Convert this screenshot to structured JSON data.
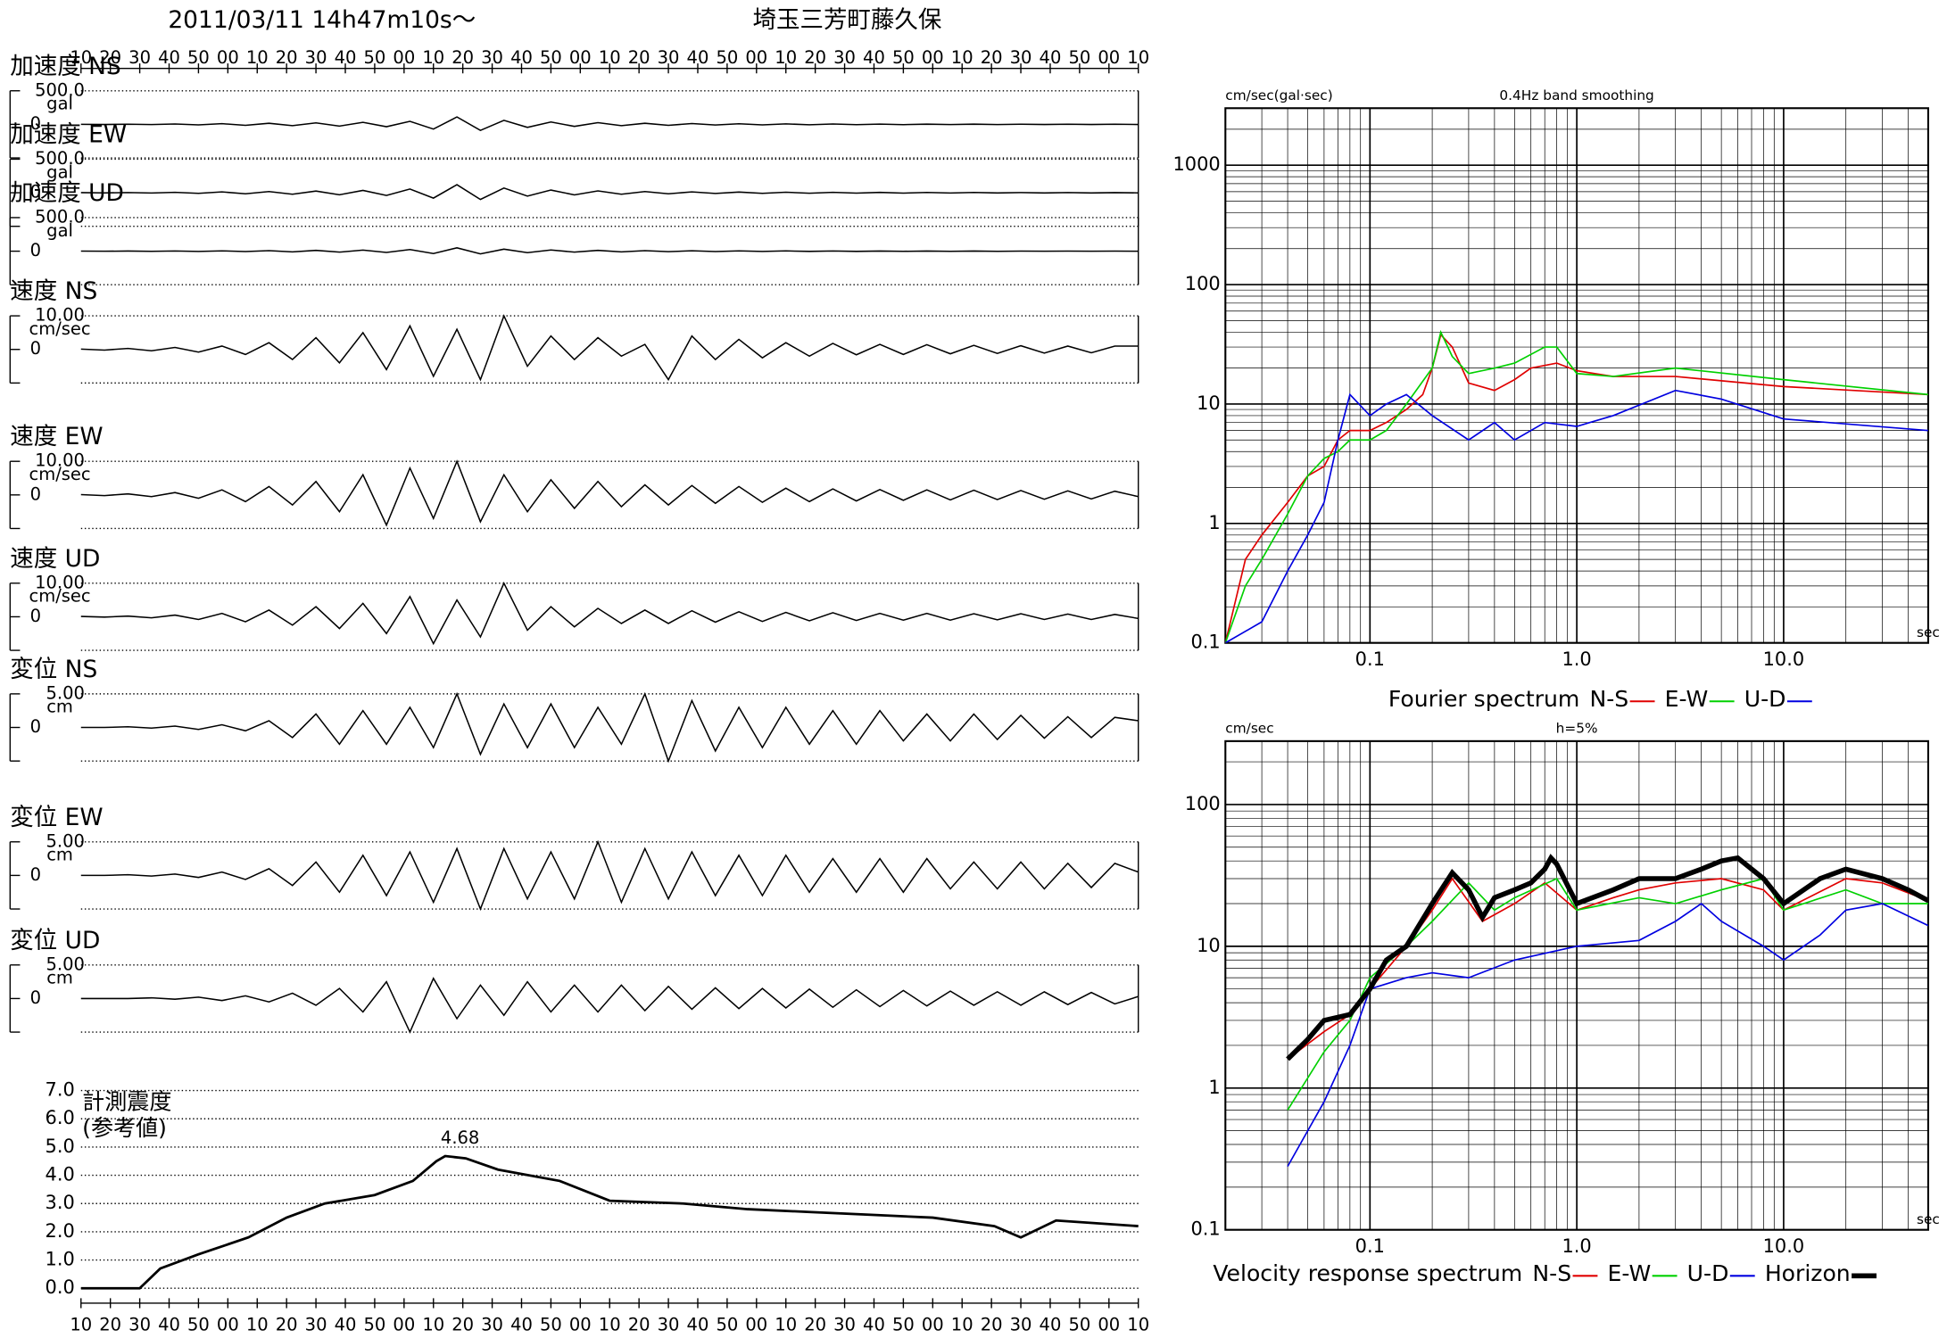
{
  "header": {
    "datetime": "2011/03/11  14h47m10s〜",
    "station": "埼玉三芳町藤久保"
  },
  "chart_data": [
    {
      "type": "waveform",
      "xlim": [
        0,
        360
      ],
      "time_labels": [
        "10",
        "20",
        "30",
        "40",
        "50",
        "00",
        "10",
        "20",
        "30",
        "40",
        "50",
        "00",
        "10",
        "20",
        "30",
        "40",
        "50",
        "00",
        "10",
        "20",
        "30",
        "40",
        "50",
        "00",
        "10",
        "20",
        "30",
        "40",
        "50",
        "00",
        "10",
        "20",
        "30",
        "40",
        "50",
        "00",
        "10"
      ],
      "x": [
        0,
        8,
        16,
        24,
        32,
        40,
        48,
        56,
        64,
        72,
        80,
        88,
        96,
        104,
        112,
        120,
        128,
        136,
        144,
        152,
        160,
        168,
        176,
        184,
        192,
        200,
        208,
        216,
        224,
        232,
        240,
        248,
        256,
        264,
        272,
        280,
        288,
        296,
        304,
        312,
        320,
        328,
        336,
        344,
        352,
        360
      ],
      "series": [
        {
          "name": "加速度 NS",
          "unit": "gal",
          "ylim": [
            -500,
            500
          ],
          "yticks": [
            {
              "value": 500,
              "label": "500.0"
            },
            0
          ],
          "values": [
            1,
            -2,
            2,
            -3,
            5,
            -8,
            10,
            -14,
            16,
            -20,
            22,
            -26,
            30,
            -35,
            45,
            -70,
            110,
            -90,
            60,
            -45,
            35,
            -30,
            25,
            -20,
            16,
            -14,
            12,
            -10,
            9,
            -8,
            7,
            -6,
            5,
            -5,
            4,
            -4,
            3,
            -3,
            3,
            -3,
            2,
            -2,
            2,
            -2,
            2,
            -2
          ]
        },
        {
          "name": "加速度 EW",
          "unit": "gal",
          "ylim": [
            -500,
            500
          ],
          "yticks": [
            {
              "value": 500,
              "label": "500.0"
            },
            0
          ],
          "values": [
            2,
            -2,
            3,
            -4,
            6,
            -9,
            12,
            -15,
            18,
            -22,
            25,
            -30,
            35,
            -40,
            55,
            -80,
            120,
            -100,
            70,
            -50,
            40,
            -32,
            28,
            -22,
            18,
            -15,
            13,
            -11,
            10,
            -9,
            8,
            -7,
            6,
            -6,
            5,
            -5,
            4,
            -4,
            4,
            -3,
            3,
            -3,
            3,
            -3,
            2,
            -2
          ]
        },
        {
          "name": "加速度 UD",
          "unit": "gal",
          "ylim": [
            -500,
            500
          ],
          "yticks": [
            {
              "value": 500,
              "label": "500.0"
            },
            0
          ],
          "values": [
            1,
            -1,
            2,
            -2,
            3,
            -4,
            5,
            -6,
            8,
            -10,
            12,
            -14,
            16,
            -18,
            25,
            -35,
            50,
            -40,
            30,
            -22,
            18,
            -14,
            12,
            -10,
            8,
            -7,
            6,
            -5,
            5,
            -4,
            4,
            -3,
            3,
            -3,
            2,
            -2,
            2,
            -2,
            2,
            -2,
            1,
            -1,
            1,
            -1,
            1,
            -1
          ]
        },
        {
          "name": "速度 NS",
          "unit": "cm/sec",
          "ylim": [
            -10,
            10
          ],
          "yticks": [
            {
              "value": 10,
              "label": "10.00"
            },
            0
          ],
          "values": [
            0.1,
            -0.2,
            0.3,
            -0.4,
            0.6,
            -0.8,
            1,
            -1.5,
            2,
            -3,
            3.5,
            -4,
            5,
            -6,
            7,
            -8,
            6,
            -9,
            10,
            -5,
            4,
            -3,
            3.5,
            -2,
            1.5,
            -9,
            4,
            -3,
            3,
            -2.5,
            2,
            -2,
            1.8,
            -1.6,
            1.5,
            -1.5,
            1.4,
            -1.3,
            1.2,
            -1.2,
            1.1,
            -1.1,
            1,
            -1,
            1,
            1
          ]
        },
        {
          "name": "速度 EW",
          "unit": "cm/sec",
          "ylim": [
            -10,
            10
          ],
          "yticks": [
            {
              "value": 10,
              "label": "10.00"
            },
            0
          ],
          "values": [
            0.1,
            -0.2,
            0.3,
            -0.5,
            0.7,
            -1,
            1.5,
            -2,
            2.5,
            -3,
            4,
            -5,
            6,
            -9,
            8,
            -7,
            10,
            -8,
            6,
            -5,
            4.5,
            -4,
            4,
            -3.5,
            3,
            -3,
            2.8,
            -2.5,
            2.5,
            -2.2,
            2,
            -2,
            1.8,
            -1.8,
            1.6,
            -1.6,
            1.5,
            -1.5,
            1.4,
            -1.4,
            1.3,
            -1.3,
            1.2,
            -1.2,
            1.1,
            -0.5
          ]
        },
        {
          "name": "速度 UD",
          "unit": "cm/sec",
          "ylim": [
            -10,
            10
          ],
          "yticks": [
            {
              "value": 10,
              "label": "10.00"
            },
            0
          ],
          "values": [
            0.1,
            -0.1,
            0.2,
            -0.3,
            0.5,
            -0.8,
            1,
            -1.5,
            2,
            -2.5,
            3,
            -3.5,
            4,
            -5,
            6,
            -8,
            5,
            -6,
            10,
            -4,
            3,
            -3,
            2.5,
            -2,
            2,
            -2,
            1.8,
            -1.6,
            1.5,
            -1.4,
            1.3,
            -1.2,
            1.2,
            -1.1,
            1,
            -1,
            1,
            -1,
            0.9,
            -0.9,
            0.9,
            -0.8,
            0.8,
            -0.8,
            0.7,
            -0.5
          ]
        },
        {
          "name": "変位 NS",
          "unit": "cm",
          "ylim": [
            -5,
            5
          ],
          "yticks": [
            {
              "value": 5,
              "label": "5.00"
            },
            0
          ],
          "values": [
            0,
            0,
            0.1,
            -0.1,
            0.2,
            -0.3,
            0.4,
            -0.5,
            1,
            -1.5,
            2,
            -2.5,
            2.5,
            -2.5,
            3,
            -3,
            5,
            -4,
            3.5,
            -3,
            3.5,
            -3,
            3,
            -2.5,
            5,
            -5,
            4,
            -3.5,
            3,
            -3,
            3,
            -2.5,
            2.5,
            -2.5,
            2.5,
            -2,
            2,
            -2,
            2,
            -1.8,
            1.8,
            -1.6,
            1.6,
            -1.5,
            1.5,
            1
          ]
        },
        {
          "name": "変位 EW",
          "unit": "cm",
          "ylim": [
            -5,
            5
          ],
          "yticks": [
            {
              "value": 5,
              "label": "5.00"
            },
            0
          ],
          "values": [
            0,
            0,
            0.1,
            -0.1,
            0.2,
            -0.3,
            0.5,
            -0.6,
            1,
            -1.5,
            2,
            -2.5,
            3,
            -3,
            3.5,
            -4,
            4,
            -5,
            4,
            -3.5,
            3.5,
            -3.5,
            5,
            -4,
            4,
            -3.5,
            3.5,
            -3,
            3,
            -3,
            3,
            -2.5,
            2.5,
            -2.5,
            2.5,
            -2.5,
            2.5,
            -2,
            2,
            -2,
            2,
            -2,
            1.8,
            -1.8,
            1.8,
            0.5
          ]
        },
        {
          "name": "変位 UD",
          "unit": "cm",
          "ylim": [
            -5,
            5
          ],
          "yticks": [
            {
              "value": 5,
              "label": "5.00"
            },
            0
          ],
          "values": [
            0,
            0,
            0,
            0.1,
            -0.1,
            0.2,
            -0.3,
            0.4,
            -0.5,
            0.8,
            -1,
            1.5,
            -2,
            2.5,
            -5,
            3,
            -3,
            2,
            -2.5,
            2.5,
            -2,
            2,
            -2,
            2,
            -1.8,
            1.8,
            -1.6,
            1.6,
            -1.5,
            1.5,
            -1.4,
            1.4,
            -1.3,
            1.3,
            -1.2,
            1.2,
            -1.1,
            1.1,
            -1,
            1,
            -1,
            1,
            -0.9,
            0.9,
            -0.8,
            0.3
          ]
        }
      ]
    },
    {
      "type": "line",
      "title": "計測震度",
      "subtitle": "(参考値)",
      "xlim": [
        0,
        360
      ],
      "ylim": [
        0,
        7
      ],
      "yticks": [
        {
          "value": 0,
          "label": "0.0"
        },
        {
          "value": 1,
          "label": "1.0"
        },
        {
          "value": 2,
          "label": "2.0"
        },
        {
          "value": 3,
          "label": "3.0"
        },
        {
          "value": 4,
          "label": "4.0"
        },
        {
          "value": 5,
          "label": "5.0"
        },
        {
          "value": 6,
          "label": "6.0"
        },
        {
          "value": 7,
          "label": "7.0"
        }
      ],
      "x": [
        0,
        20,
        27,
        40,
        57,
        70,
        83,
        100,
        113,
        121,
        124,
        131,
        142,
        163,
        180,
        205,
        227,
        248,
        269,
        290,
        311,
        320,
        332,
        360
      ],
      "values": [
        0,
        0,
        0.7,
        1.2,
        1.8,
        2.5,
        3.0,
        3.3,
        3.8,
        4.5,
        4.68,
        4.6,
        4.2,
        3.8,
        3.1,
        3.0,
        2.8,
        2.7,
        2.6,
        2.5,
        2.2,
        1.8,
        2.4,
        2.2
      ],
      "peak": {
        "x": 124,
        "value": 4.68
      }
    },
    {
      "type": "spectrum",
      "title": "Fourier spectrum",
      "ylabel": "cm/sec(gal·sec)",
      "xlabel": "sec",
      "note": "0.4Hz band smoothing",
      "log": true,
      "grid": true,
      "xlim": [
        0.02,
        50
      ],
      "ylim": [
        0.1,
        3000
      ],
      "xticks": [
        0.1,
        {
          "value": 1,
          "label": "1.0"
        },
        {
          "value": 10,
          "label": "10.0"
        }
      ],
      "yticks": [
        0.1,
        1,
        10,
        100,
        1000
      ],
      "series": [
        {
          "name": "N-S",
          "color": "#e00000",
          "x": [
            0.02,
            0.025,
            0.03,
            0.04,
            0.05,
            0.06,
            0.07,
            0.08,
            0.1,
            0.12,
            0.15,
            0.18,
            0.2,
            0.22,
            0.25,
            0.3,
            0.4,
            0.5,
            0.6,
            0.8,
            1,
            1.5,
            3,
            10,
            50
          ],
          "values": [
            0.1,
            0.5,
            0.8,
            1.5,
            2.5,
            3,
            5,
            6,
            6,
            7,
            9,
            12,
            20,
            38,
            30,
            15,
            13,
            16,
            20,
            22,
            19,
            17,
            17,
            14,
            12
          ]
        },
        {
          "name": "E-W",
          "color": "#00d000",
          "x": [
            0.02,
            0.025,
            0.03,
            0.04,
            0.05,
            0.06,
            0.07,
            0.08,
            0.1,
            0.12,
            0.15,
            0.2,
            0.22,
            0.25,
            0.3,
            0.4,
            0.5,
            0.7,
            0.8,
            1,
            1.5,
            3,
            10,
            50
          ],
          "values": [
            0.1,
            0.3,
            0.5,
            1.2,
            2.5,
            3.5,
            4,
            5,
            5,
            6,
            10,
            20,
            40,
            25,
            18,
            20,
            22,
            30,
            30,
            18,
            17,
            20,
            16,
            12
          ]
        },
        {
          "name": "U-D",
          "color": "#0000e0",
          "x": [
            0.02,
            0.03,
            0.04,
            0.05,
            0.06,
            0.07,
            0.08,
            0.1,
            0.12,
            0.15,
            0.2,
            0.3,
            0.4,
            0.5,
            0.7,
            1,
            1.5,
            3,
            5,
            10,
            50
          ],
          "values": [
            0.1,
            0.15,
            0.4,
            0.8,
            1.5,
            5,
            12,
            8,
            10,
            12,
            8,
            5,
            7,
            5,
            7,
            6.5,
            8,
            13,
            11,
            7.5,
            6
          ]
        }
      ]
    },
    {
      "type": "spectrum",
      "title": "Velocity response spectrum",
      "ylabel": "cm/sec",
      "xlabel": "sec",
      "note": "h=5%",
      "log": true,
      "grid": true,
      "xlim": [
        0.02,
        50
      ],
      "ylim": [
        0.1,
        280
      ],
      "xticks": [
        0.1,
        {
          "value": 1,
          "label": "1.0"
        },
        {
          "value": 10,
          "label": "10.0"
        }
      ],
      "yticks": [
        0.1,
        1,
        10,
        100
      ],
      "series": [
        {
          "name": "N-S",
          "color": "#e00000",
          "x": [
            0.04,
            0.06,
            0.08,
            0.1,
            0.15,
            0.2,
            0.25,
            0.35,
            0.5,
            0.7,
            1,
            1.5,
            2,
            3,
            5,
            8,
            10,
            20,
            30,
            50
          ],
          "values": [
            1.6,
            2.5,
            3.3,
            5,
            10,
            18,
            30,
            15,
            20,
            28,
            18,
            22,
            25,
            28,
            30,
            25,
            18,
            30,
            28,
            21
          ]
        },
        {
          "name": "E-W",
          "color": "#00d000",
          "x": [
            0.04,
            0.06,
            0.08,
            0.1,
            0.15,
            0.2,
            0.3,
            0.4,
            0.5,
            0.8,
            1,
            2,
            3,
            5,
            8,
            10,
            20,
            30,
            50
          ],
          "values": [
            0.7,
            1.8,
            3,
            6,
            10,
            15,
            28,
            18,
            22,
            30,
            18,
            22,
            20,
            25,
            30,
            18,
            25,
            20,
            20
          ]
        },
        {
          "name": "U-D",
          "color": "#0000e0",
          "x": [
            0.04,
            0.06,
            0.08,
            0.1,
            0.15,
            0.2,
            0.3,
            0.5,
            1,
            2,
            3,
            4,
            5,
            8,
            10,
            15,
            20,
            30,
            50
          ],
          "values": [
            0.28,
            0.8,
            2,
            5,
            6,
            6.5,
            6,
            8,
            10,
            11,
            15,
            20,
            15,
            10,
            8,
            12,
            18,
            20,
            14
          ]
        },
        {
          "name": "Horizon",
          "color": "#000000",
          "x": [
            0.04,
            0.05,
            0.06,
            0.08,
            0.1,
            0.12,
            0.15,
            0.2,
            0.25,
            0.3,
            0.35,
            0.4,
            0.5,
            0.6,
            0.7,
            0.75,
            0.8,
            1,
            1.5,
            2,
            3,
            4,
            5,
            6,
            8,
            10,
            15,
            20,
            30,
            40,
            50
          ],
          "values": [
            1.6,
            2.2,
            3,
            3.3,
            5,
            8,
            10,
            20,
            33,
            25,
            16,
            22,
            25,
            28,
            35,
            42,
            38,
            20,
            25,
            30,
            30,
            35,
            40,
            42,
            30,
            20,
            30,
            35,
            30,
            25,
            21
          ]
        }
      ]
    }
  ]
}
